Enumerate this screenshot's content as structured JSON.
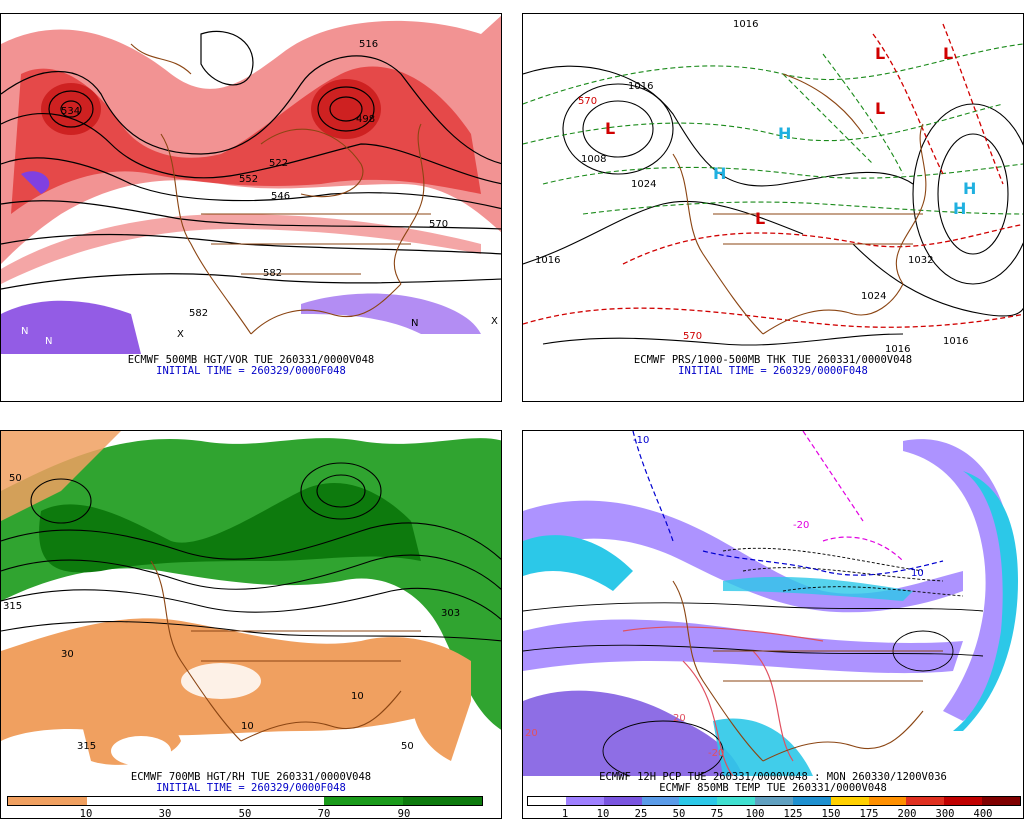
{
  "panels": {
    "tl": {
      "caption_line1": "ECMWF 500MB HGT/VOR TUE 260331/0000V048",
      "caption_line2": "INITIAL TIME = 260329/0000F048",
      "contour_labels": [
        "516",
        "522",
        "552",
        "546",
        "498",
        "570",
        "582",
        "582",
        "534"
      ],
      "symbols": [
        "N",
        "X"
      ]
    },
    "tr": {
      "caption_line1": "ECMWF PRS/1000-500MB THK TUE 260331/0000V048",
      "caption_line2": "INITIAL TIME = 260329/0000F048",
      "contour_labels": [
        "1016",
        "1016",
        "1008",
        "1024",
        "1016",
        "1032",
        "1024",
        "1016",
        "1016",
        "570",
        "570"
      ],
      "symbols": [
        "L",
        "H"
      ]
    },
    "bl": {
      "caption_line1": "ECMWF 700MB HGT/RH TUE 260331/0000V048",
      "caption_line2": "INITIAL TIME = 260329/0000F048",
      "contour_labels": [
        "303",
        "315",
        "30",
        "50",
        "10",
        "315",
        "10",
        "50"
      ],
      "colorbar": {
        "colors": [
          "#f0a060",
          "#ffffff",
          "#ffffff",
          "#ffffff",
          "#1a9a1a",
          "#0d7a0d"
        ],
        "ticks": [
          "10",
          "30",
          "50",
          "70",
          "90"
        ]
      }
    },
    "br": {
      "caption_line1": "ECMWF 12H PCP TUE 260331/0000V048 : MON 260330/1200V036",
      "caption_line2": "ECMWF 850MB TEMP TUE 260331/0000V048",
      "contour_labels": [
        "-10",
        "10",
        "-20",
        "20",
        "20",
        "-20"
      ],
      "colorbar": {
        "colors": [
          "#ffffff",
          "#9f80ff",
          "#7a55e0",
          "#5a9be8",
          "#2cc8e8",
          "#40e0d0",
          "#60a0c0",
          "#1e90d0",
          "#ffd000",
          "#ff9000",
          "#e03020",
          "#c00000",
          "#800000"
        ],
        "ticks": [
          "1",
          "10",
          "25",
          "50",
          "75",
          "100",
          "125",
          "150",
          "175",
          "200",
          "300",
          "400"
        ]
      }
    }
  }
}
